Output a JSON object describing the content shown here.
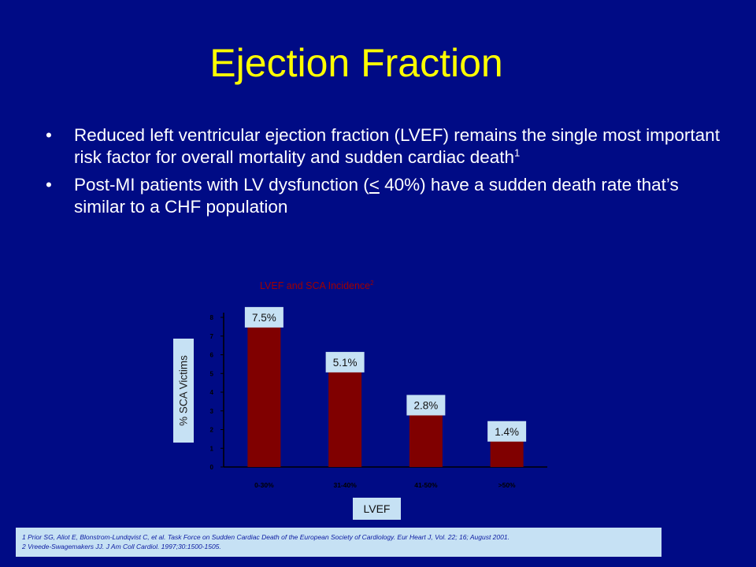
{
  "slide": {
    "title": "Ejection Fraction",
    "bullets": [
      {
        "bullet_char": "•",
        "text": "Reduced left ventricular ejection fraction (LVEF) remains the single most important risk factor for overall mortality and sudden cardiac death",
        "superscript": "1"
      },
      {
        "bullet_char": "•",
        "text_before": "Post-MI patients with LV dysfunction (",
        "symbol": "<",
        "text_after": " 40%) have a sudden death rate that’s similar to a CHF population"
      }
    ],
    "references": [
      "1 Prior SG, Aliot E, Blonstrom-Lundqvist C, et al.  Task Force on Sudden Cardiac Death of the European Society of Cardiology.  Eur Heart J, Vol. 22; 16; August 2001.",
      "2 Vreede-Swagemakers JJ. J Am Coll Cardiol. 1997;30:1500-1505."
    ]
  },
  "colors": {
    "background": "#000b85",
    "title": "#ffff00",
    "bar": "#800000",
    "label_box": "#c6e1f4",
    "chart_title": "#a00000"
  },
  "chart_data": {
    "type": "bar",
    "title": "LVEF and SCA Incidence",
    "title_superscript": "2",
    "xlabel": "LVEF",
    "ylabel": "% SCA Victims",
    "categories": [
      "0-30%",
      "31-40%",
      "41-50%",
      ">50%"
    ],
    "values": [
      7.5,
      5.1,
      2.8,
      1.4
    ],
    "data_labels": [
      "7.5%",
      "5.1%",
      "2.8%",
      "1.4%"
    ],
    "yticks": [
      "0",
      "1",
      "2",
      "3",
      "4",
      "5",
      "6",
      "7",
      "8"
    ],
    "ylim": [
      0,
      8
    ],
    "grid": false,
    "legend": "none"
  }
}
